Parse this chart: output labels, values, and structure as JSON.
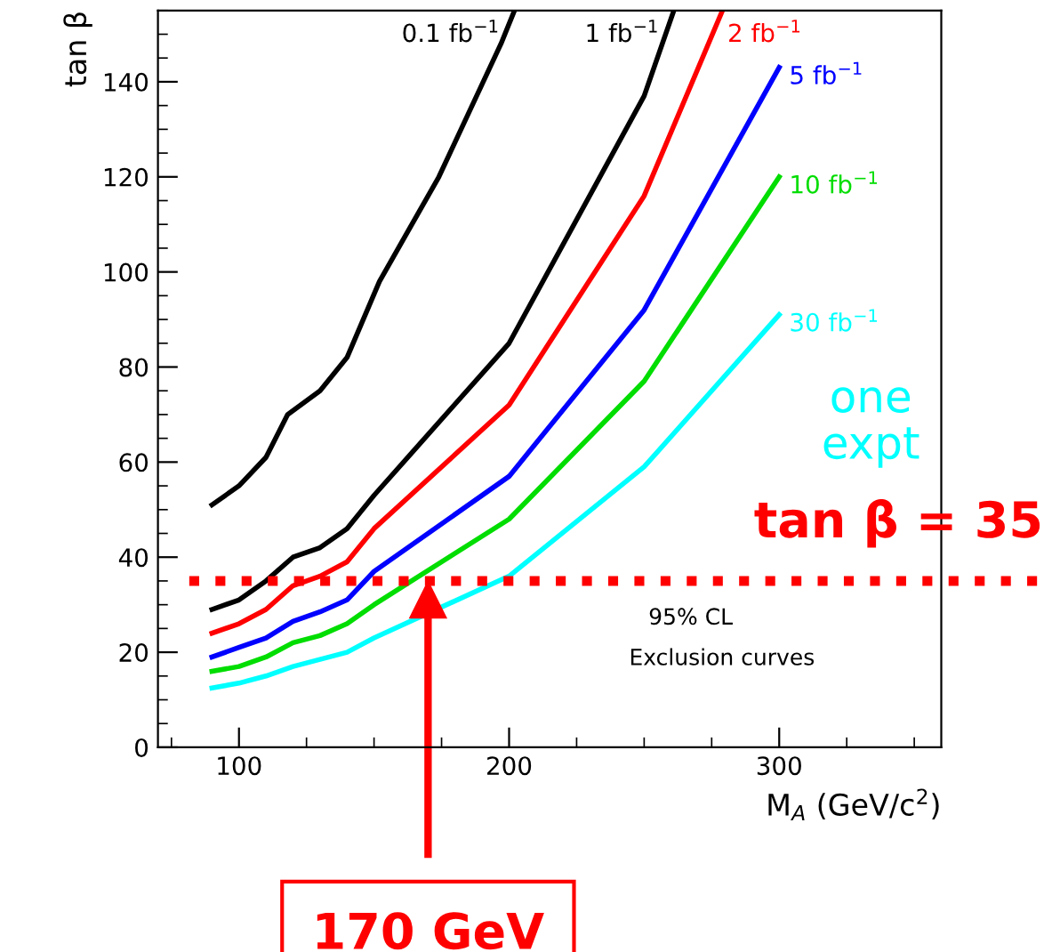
{
  "chart_data": {
    "type": "line",
    "xlabel": "M$_{A}$ (GeV/c$^{2}$)",
    "ylabel": "tan β",
    "xlim": [
      70,
      360
    ],
    "xticks": [
      100,
      200,
      300
    ],
    "ylim": [
      0,
      155
    ],
    "yticks": [
      0,
      20,
      40,
      60,
      80,
      100,
      120,
      140
    ],
    "grid": false,
    "marker": "none",
    "line_style": "solid",
    "series": [
      {
        "name": "0.1 fb$^{−1}$",
        "color": "#000000",
        "x": [
          90,
          100,
          110,
          118,
          130,
          140,
          152,
          174,
          197,
          202
        ],
        "values": [
          51,
          55,
          61,
          70,
          75,
          82,
          98,
          120,
          148,
          155
        ]
      },
      {
        "name": "1 fb$^{−1}$",
        "color": "#000000",
        "x": [
          90,
          100,
          110,
          120,
          130,
          140,
          150,
          200,
          250,
          261
        ],
        "values": [
          29,
          31,
          35,
          40,
          42,
          46,
          53,
          85,
          137,
          155
        ]
      },
      {
        "name": "2 fb$^{−1}$",
        "color": "#ff0000",
        "x": [
          90,
          100,
          110,
          120,
          130,
          140,
          150,
          200,
          250,
          279
        ],
        "values": [
          24,
          26,
          29,
          34,
          36,
          39,
          46,
          72,
          116,
          155
        ]
      },
      {
        "name": "5 fb$^{−1}$",
        "color": "#0000ff",
        "x": [
          90,
          100,
          110,
          120,
          130,
          140,
          150,
          200,
          250,
          300
        ],
        "values": [
          19,
          21,
          23,
          26.5,
          28.5,
          31,
          37,
          57,
          92,
          143
        ]
      },
      {
        "name": "10 fb$^{−1}$",
        "color": "#00dd00",
        "x": [
          90,
          100,
          110,
          120,
          130,
          140,
          150,
          200,
          250,
          300
        ],
        "values": [
          16,
          17,
          19,
          22,
          23.5,
          26,
          30,
          48,
          77,
          120
        ]
      },
      {
        "name": "30 fb$^{−1}$",
        "color": "#00ffff",
        "x": [
          90,
          100,
          110,
          120,
          130,
          140,
          150,
          200,
          250,
          300
        ],
        "values": [
          12.5,
          13.5,
          15,
          17,
          18.5,
          20,
          23,
          36,
          59,
          91
        ]
      }
    ],
    "ref_lines": [
      {
        "axis": "y",
        "value": 35,
        "label": "tan β = 35",
        "color": "#ff0000",
        "line_style": "dotted"
      },
      {
        "axis": "x",
        "value": 170,
        "label": "170 GeV",
        "color": "#ff0000",
        "line_style": "solid"
      }
    ],
    "annotations": [
      "95% CL",
      "Exclusion curves",
      "one expt"
    ]
  }
}
